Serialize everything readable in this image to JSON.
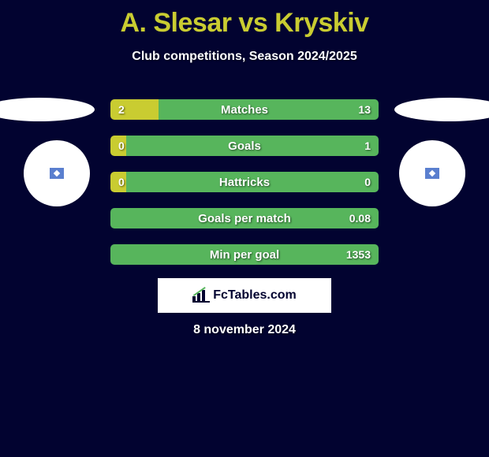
{
  "title": "A. Slesar vs Kryskiv",
  "subtitle": "Club competitions, Season 2024/2025",
  "logo_text": "FcTables.com",
  "date": "8 november 2024",
  "colors": {
    "background": "#020330",
    "accent_yellow": "#c9cc31",
    "bar_green": "#57b55c",
    "white": "#ffffff"
  },
  "bars": [
    {
      "label": "Matches",
      "left_value": "2",
      "right_value": "13",
      "left_pct": 18,
      "right_pct": 82
    },
    {
      "label": "Goals",
      "left_value": "0",
      "right_value": "1",
      "left_pct": 6,
      "right_pct": 94
    },
    {
      "label": "Hattricks",
      "left_value": "0",
      "right_value": "0",
      "left_pct": 6,
      "right_pct": 94
    },
    {
      "label": "Goals per match",
      "left_value": "",
      "right_value": "0.08",
      "left_pct": 0,
      "right_pct": 100
    },
    {
      "label": "Min per goal",
      "left_value": "",
      "right_value": "1353",
      "left_pct": 0,
      "right_pct": 100
    }
  ]
}
